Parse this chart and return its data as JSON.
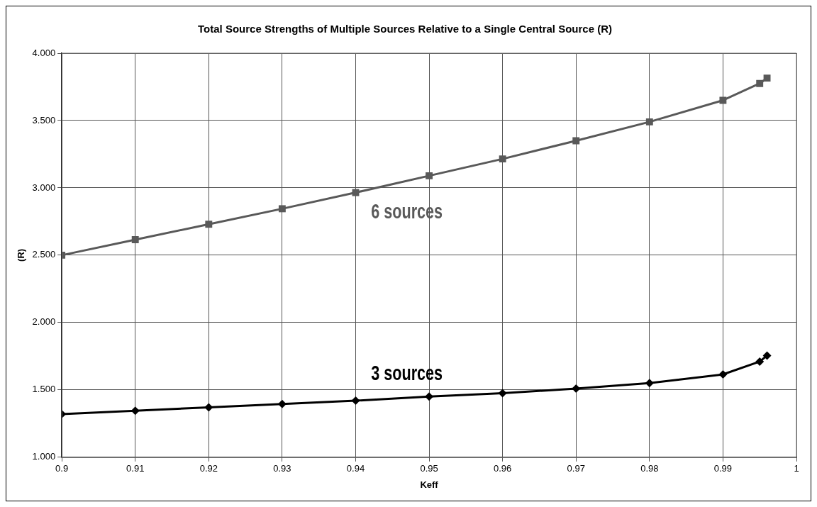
{
  "chart_data": {
    "type": "line",
    "title": "Total Source Strengths of Multiple Sources Relative to a Single Central Source (R)",
    "xlabel": "Keff",
    "ylabel": "(R)",
    "x": [
      0.9,
      0.91,
      0.92,
      0.93,
      0.94,
      0.95,
      0.96,
      0.97,
      0.98,
      0.99,
      0.995,
      0.996
    ],
    "series": [
      {
        "name": "6 sources",
        "color": "#595959",
        "marker": "square",
        "values": [
          2.5,
          2.615,
          2.73,
          2.845,
          2.965,
          3.09,
          3.215,
          3.35,
          3.49,
          3.65,
          3.775,
          3.815
        ]
      },
      {
        "name": "3 sources",
        "color": "#000000",
        "marker": "diamond",
        "values": [
          1.32,
          1.345,
          1.37,
          1.395,
          1.42,
          1.45,
          1.475,
          1.51,
          1.55,
          1.615,
          1.71,
          1.755
        ]
      }
    ],
    "xlim": [
      0.9,
      1
    ],
    "xticks": [
      0.9,
      0.91,
      0.92,
      0.93,
      0.94,
      0.95,
      0.96,
      0.97,
      0.98,
      0.99,
      1
    ],
    "ylim": [
      1,
      4
    ],
    "yticks": [
      {
        "value": 1,
        "label": "1.000"
      },
      {
        "value": 1.5,
        "label": "1.500"
      },
      {
        "value": 2,
        "label": "2.000"
      },
      {
        "value": 2.5,
        "label": "2.500"
      },
      {
        "value": 3,
        "label": "3.000"
      },
      {
        "value": 3.5,
        "label": "3.500"
      },
      {
        "value": 4,
        "label": "4.000"
      }
    ],
    "grid": true,
    "legend": false,
    "line_style": "solid"
  }
}
